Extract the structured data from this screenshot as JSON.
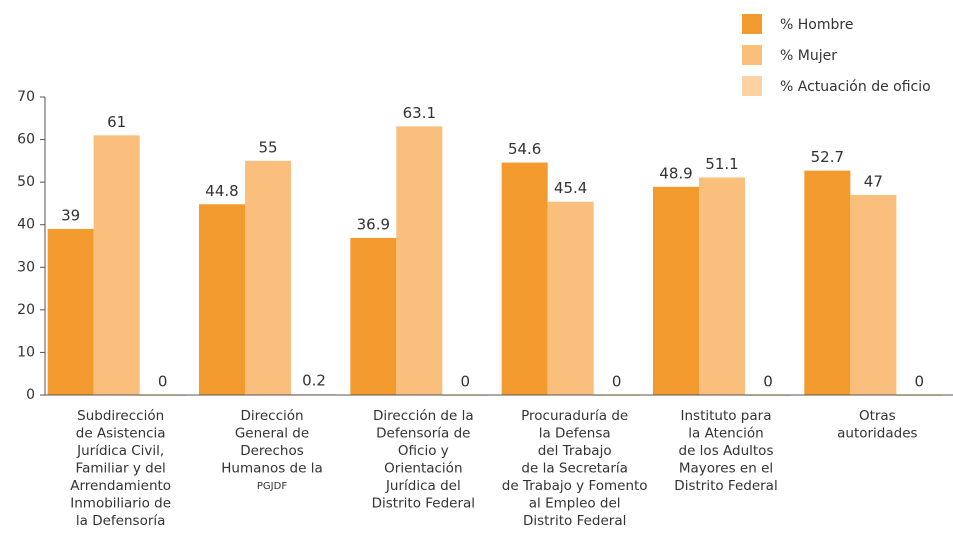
{
  "chart_data": {
    "type": "bar",
    "categories": [
      [
        "Subdirección",
        "de Asistencia",
        "Jurídica Civil,",
        "Familiar y del",
        "Arrendamiento",
        "Inmobiliario de",
        "la Defensoría"
      ],
      [
        "Dirección",
        "General de",
        "Derechos",
        "Humanos de la",
        "PGJDF"
      ],
      [
        "Dirección de la",
        "Defensoría de",
        "Oficio y",
        "Orientación",
        "Jurídica del",
        "Distrito Federal"
      ],
      [
        "Procuraduría de",
        "la Defensa",
        "del Trabajo",
        "de la Secretaría",
        "de Trabajo y Fomento",
        "al Empleo del",
        "Distrito Federal"
      ],
      [
        "Instituto para",
        "la Atención",
        "de los Adultos",
        "Mayores en el",
        "Distrito Federal"
      ],
      [
        "Otras",
        "autoridades"
      ]
    ],
    "series": [
      {
        "name": "% Hombre",
        "color": "#f39a2e",
        "values": [
          39,
          44.8,
          36.9,
          54.6,
          48.9,
          52.7
        ]
      },
      {
        "name": "% Mujer",
        "color": "#fbbf7d",
        "values": [
          61,
          55,
          63.1,
          45.4,
          51.1,
          47
        ]
      },
      {
        "name": "% Actuación de oficio",
        "color": "#fdd3a3",
        "values": [
          0,
          0.2,
          0,
          0,
          0,
          0
        ]
      }
    ],
    "ylim": [
      0,
      70
    ],
    "yticks": [
      0,
      10,
      20,
      30,
      40,
      50,
      60,
      70
    ],
    "legend": "top-right"
  }
}
